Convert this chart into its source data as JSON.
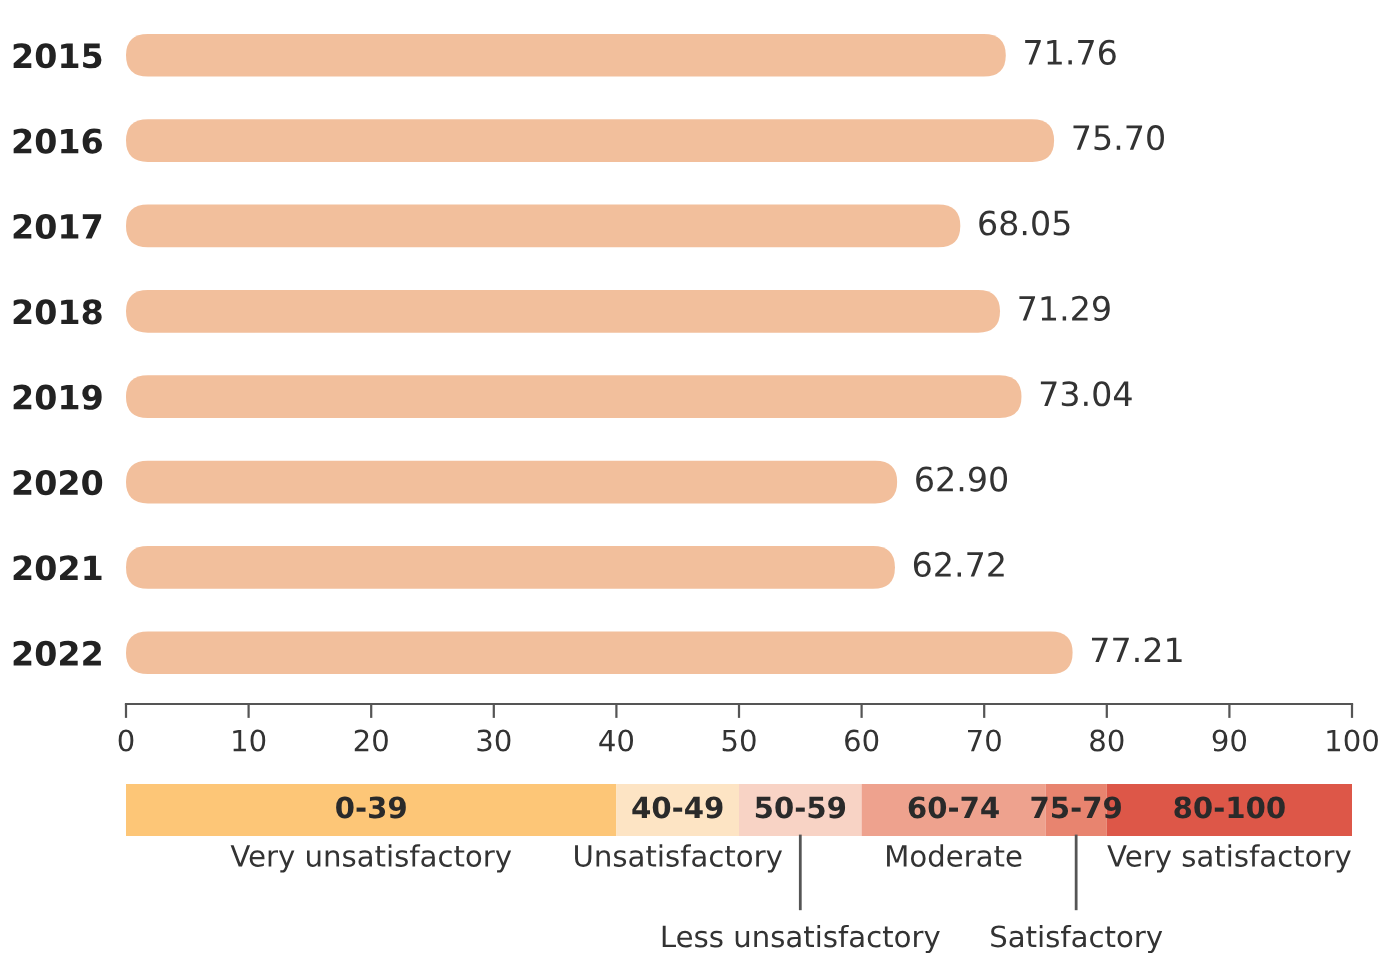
{
  "chart_data": [
    {
      "type": "bar",
      "orientation": "horizontal",
      "categories": [
        "2015",
        "2016",
        "2017",
        "2018",
        "2019",
        "2020",
        "2021",
        "2022"
      ],
      "values": [
        71.76,
        75.7,
        68.05,
        71.29,
        73.04,
        62.9,
        62.72,
        77.21
      ],
      "value_labels": [
        "71.76",
        "75.70",
        "68.05",
        "71.29",
        "73.04",
        "62.90",
        "62.72",
        "77.21"
      ],
      "color": "#f2bf9c",
      "xlim": [
        0,
        100
      ],
      "xticks": [
        0,
        10,
        20,
        30,
        40,
        50,
        60,
        70,
        80,
        90,
        100
      ],
      "grid": false
    },
    {
      "type": "bar",
      "orientation": "horizontal",
      "stacked": true,
      "categories": [
        null
      ],
      "xlim": [
        0,
        100
      ],
      "legend": "bottom",
      "series": [
        {
          "name": "Very unsatisfactory",
          "color": "#fdc677",
          "values": [
            40
          ],
          "value_labels": [
            "0-39"
          ]
        },
        {
          "name": "Unsatisfactory",
          "color": "#fde4c4",
          "values": [
            10
          ],
          "value_labels": [
            "40-49"
          ]
        },
        {
          "name": "Less unsatisfactory",
          "color": "#f8d3c5",
          "values": [
            10
          ],
          "value_labels": [
            "50-59"
          ]
        },
        {
          "name": "Moderate",
          "color": "#eea28e",
          "values": [
            15
          ],
          "value_labels": [
            "60-74"
          ]
        },
        {
          "name": "Satisfactory",
          "color": "#e8846f",
          "values": [
            5
          ],
          "value_labels": [
            "75-79"
          ]
        },
        {
          "name": "Very satisfactory",
          "color": "#dd5748",
          "values": [
            20
          ],
          "value_labels": [
            "80-100"
          ]
        }
      ]
    }
  ]
}
